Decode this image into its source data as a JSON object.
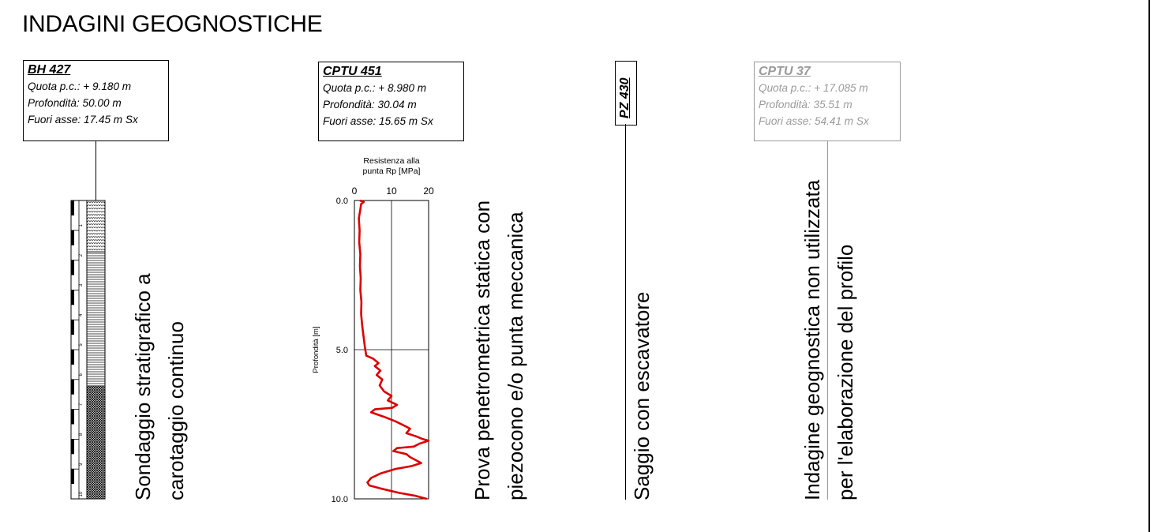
{
  "title": "INDAGINI GEOGNOSTICHE",
  "bh427": {
    "name": "BH 427",
    "quota": "Quota p.c.: + 9.180 m",
    "profondita": "Profondità: 50.00 m",
    "fuori_asse": "Fuori asse: 17.45 m Sx",
    "description_line1": "Sondaggio stratigrafico a",
    "description_line2": "carotaggio continuo",
    "depth_ticks": [
      "1",
      "2",
      "3",
      "4",
      "5",
      "6",
      "7",
      "8",
      "9",
      "10"
    ]
  },
  "cptu451": {
    "name": "CPTU 451",
    "quota": "Quota p.c.: + 8.980 m",
    "profondita": "Profondità: 30.04 m",
    "fuori_asse": "Fuori asse: 15.65 m Sx",
    "description_line1": "Prova penetrometrica statica con",
    "description_line2": "piezocono e/o punta meccanica"
  },
  "pz430": {
    "name": "PZ 430",
    "description_line1": "Saggio con escavatore"
  },
  "cptu37": {
    "name": "CPTU 37",
    "quota": "Quota p.c.: + 17.085 m",
    "profondita": "Profondità: 35.51 m",
    "fuori_asse": "Fuori asse: 54.41 m Sx",
    "description_line1": "Indagine geognostica non utilizzata",
    "description_line2": "per l'elaborazione del profilo"
  },
  "chart_data": {
    "type": "line",
    "title_line1": "Resistenza alla",
    "title_line2": "punta Rp [MPa]",
    "ylabel": "Profondità [m]",
    "x_ticks": [
      "0",
      "10",
      "20"
    ],
    "y_ticks": [
      "0.0",
      "5.0",
      "10.0"
    ],
    "xlim": [
      0,
      20
    ],
    "ylim": [
      0,
      10
    ],
    "grid": true,
    "series": [
      {
        "color": "#dd0000",
        "points": [
          [
            1.5,
            0.0
          ],
          [
            2.5,
            0.05
          ],
          [
            1.8,
            0.12
          ],
          [
            1.6,
            0.3
          ],
          [
            1.2,
            0.6
          ],
          [
            1.4,
            1.0
          ],
          [
            1.3,
            1.4
          ],
          [
            1.6,
            1.8
          ],
          [
            1.5,
            2.2
          ],
          [
            1.7,
            2.6
          ],
          [
            1.6,
            3.0
          ],
          [
            1.9,
            3.4
          ],
          [
            1.8,
            3.8
          ],
          [
            2.1,
            4.2
          ],
          [
            2.5,
            4.6
          ],
          [
            2.8,
            4.9
          ],
          [
            3.2,
            5.2
          ],
          [
            5.0,
            5.3
          ],
          [
            6.5,
            5.45
          ],
          [
            5.5,
            5.55
          ],
          [
            7.0,
            5.7
          ],
          [
            6.0,
            5.85
          ],
          [
            7.5,
            6.0
          ],
          [
            6.8,
            6.2
          ],
          [
            8.0,
            6.4
          ],
          [
            10.0,
            6.55
          ],
          [
            9.0,
            6.7
          ],
          [
            11.5,
            6.85
          ],
          [
            10.2,
            6.95
          ],
          [
            5.5,
            7.0
          ],
          [
            4.5,
            7.1
          ],
          [
            8.0,
            7.25
          ],
          [
            11.0,
            7.4
          ],
          [
            13.5,
            7.55
          ],
          [
            15.0,
            7.65
          ],
          [
            14.0,
            7.8
          ],
          [
            16.5,
            7.9
          ],
          [
            18.5,
            8.0
          ],
          [
            20.0,
            8.05
          ],
          [
            17.5,
            8.15
          ],
          [
            16.0,
            8.25
          ],
          [
            11.5,
            8.3
          ],
          [
            10.5,
            8.4
          ],
          [
            14.0,
            8.5
          ],
          [
            15.0,
            8.6
          ],
          [
            16.5,
            8.7
          ],
          [
            18.0,
            8.8
          ],
          [
            15.5,
            8.9
          ],
          [
            11.0,
            9.0
          ],
          [
            7.0,
            9.15
          ],
          [
            4.5,
            9.3
          ],
          [
            3.5,
            9.45
          ],
          [
            4.0,
            9.55
          ],
          [
            7.0,
            9.65
          ],
          [
            12.0,
            9.8
          ],
          [
            16.5,
            9.9
          ],
          [
            19.5,
            10.0
          ]
        ]
      }
    ]
  }
}
